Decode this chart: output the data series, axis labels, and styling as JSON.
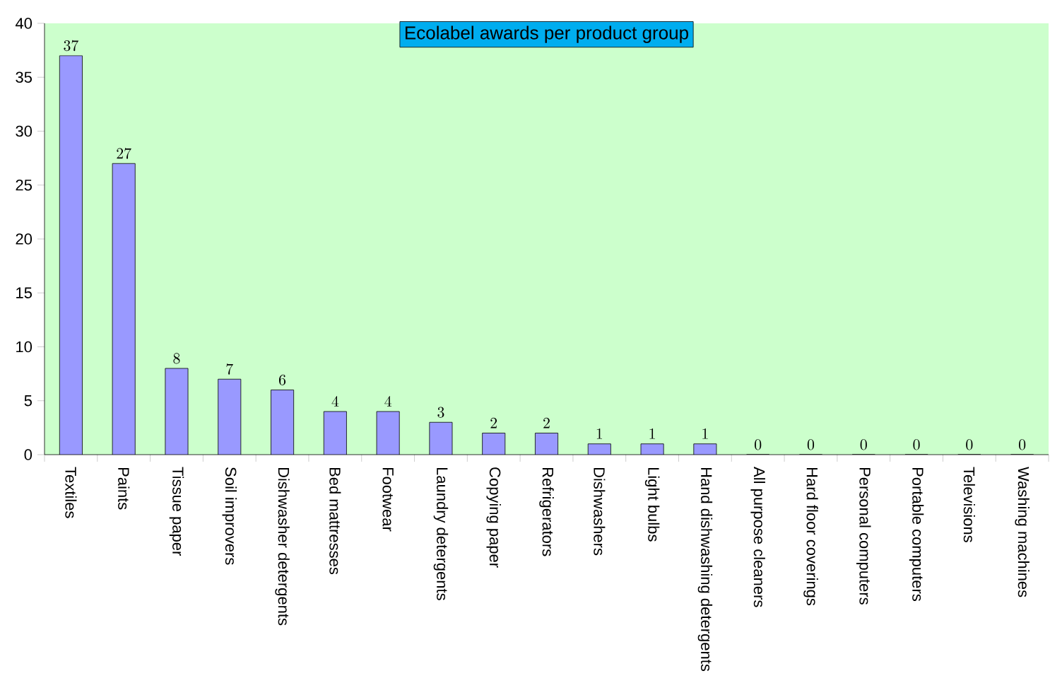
{
  "chart_data": {
    "type": "bar",
    "title": "Ecolabel awards per product group",
    "categories": [
      "Textiles",
      "Paints",
      "Tissue paper",
      "Soil improvers",
      "Dishwasher detergents",
      "Bed mattresses",
      "Footwear",
      "Laundry detergents",
      "Copying paper",
      "Refrigerators",
      "Dishwashers",
      "Light bulbs",
      "Hand dishwashing detergents",
      "All purpose cleaners",
      "Hard floor coverings",
      "Personal computers",
      "Portable computers",
      "Televisions",
      "Washing machines"
    ],
    "values": [
      37,
      27,
      8,
      7,
      6,
      4,
      4,
      3,
      2,
      2,
      1,
      1,
      1,
      0,
      0,
      0,
      0,
      0,
      0
    ],
    "color": "#9999ff",
    "ylim": [
      0,
      40
    ],
    "yticks": [
      0,
      5,
      10,
      15,
      20,
      25,
      30,
      35,
      40
    ],
    "data_labels": true
  }
}
